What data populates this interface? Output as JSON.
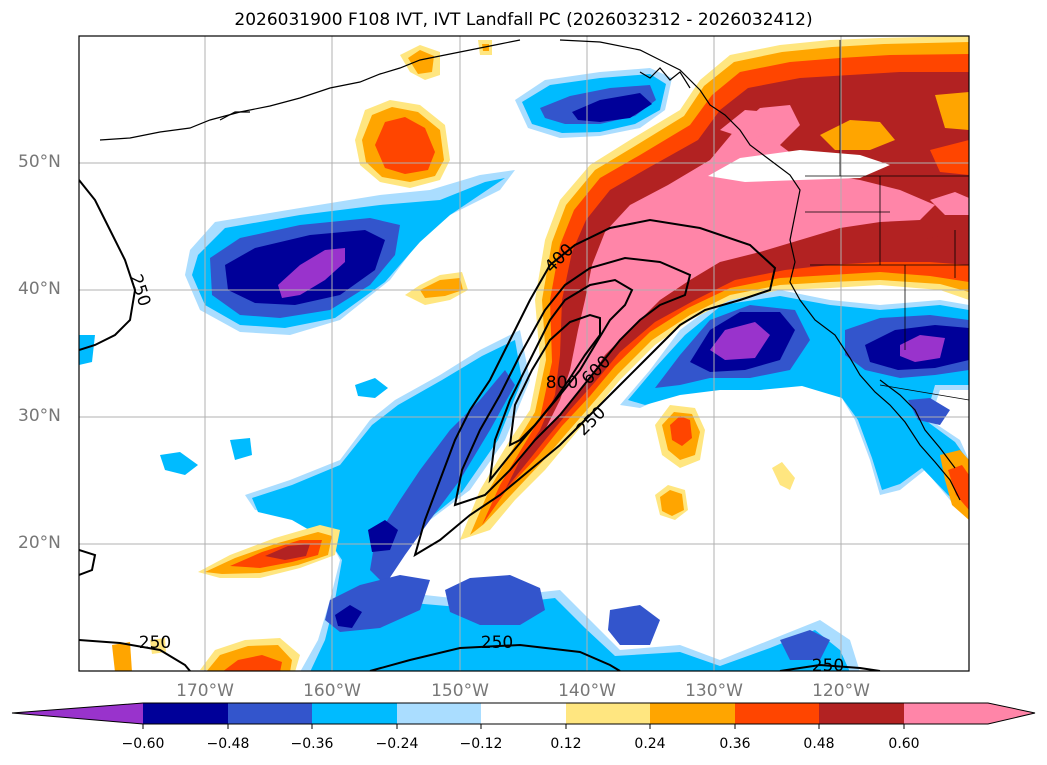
{
  "title": "2026031900 F108 IVT, IVT Landfall PC (2026032312 - 2026032412)",
  "map": {
    "lat_labels": [
      "50°N",
      "40°N",
      "30°N",
      "20°N"
    ],
    "lon_labels": [
      "170°W",
      "160°W",
      "150°W",
      "140°W",
      "130°W",
      "120°W"
    ],
    "contour_labels": [
      "250",
      "400",
      "600",
      "800",
      "250",
      "250",
      "250",
      "250"
    ]
  },
  "colorbar": {
    "ticks": [
      "−0.60",
      "−0.48",
      "−0.36",
      "−0.24",
      "−0.12",
      "0.12",
      "0.24",
      "0.36",
      "0.48",
      "0.60"
    ],
    "colors": [
      "#9933cc",
      "#000099",
      "#3355cc",
      "#00bbff",
      "#aaddff",
      "#ffffff",
      "#ffe680",
      "#ffa500",
      "#ff4500",
      "#b22222",
      "#ff85a8"
    ]
  }
}
